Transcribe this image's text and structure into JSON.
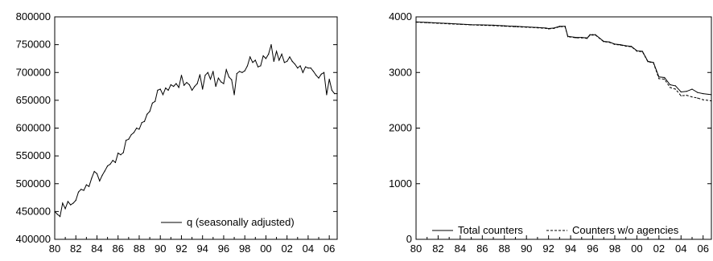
{
  "chart_data": [
    {
      "type": "line",
      "title": "",
      "xlabel": "",
      "ylabel": "",
      "xlim": [
        1980,
        2006.75
      ],
      "ylim": [
        400000,
        800000
      ],
      "x_ticks": [
        "80",
        "82",
        "84",
        "86",
        "88",
        "90",
        "92",
        "94",
        "96",
        "98",
        "00",
        "02",
        "04",
        "06"
      ],
      "y_ticks": [
        "400000",
        "450000",
        "500000",
        "550000",
        "600000",
        "650000",
        "700000",
        "750000",
        "800000"
      ],
      "legend": "bottom-right",
      "grid": false,
      "series": [
        {
          "name": "q (seasonally adjusted)",
          "style": "solid",
          "x": [
            1980.0,
            1980.25,
            1980.5,
            1980.75,
            1981.0,
            1981.25,
            1981.5,
            1981.75,
            1982.0,
            1982.25,
            1982.5,
            1982.75,
            1983.0,
            1983.25,
            1983.5,
            1983.75,
            1984.0,
            1984.25,
            1984.5,
            1984.75,
            1985.0,
            1985.25,
            1985.5,
            1985.75,
            1986.0,
            1986.25,
            1986.5,
            1986.75,
            1987.0,
            1987.25,
            1987.5,
            1987.75,
            1988.0,
            1988.25,
            1988.5,
            1988.75,
            1989.0,
            1989.25,
            1989.5,
            1989.75,
            1990.0,
            1990.25,
            1990.5,
            1990.75,
            1991.0,
            1991.25,
            1991.5,
            1991.75,
            1992.0,
            1992.25,
            1992.5,
            1992.75,
            1993.0,
            1993.25,
            1993.5,
            1993.75,
            1994.0,
            1994.25,
            1994.5,
            1994.75,
            1995.0,
            1995.25,
            1995.5,
            1995.75,
            1996.0,
            1996.25,
            1996.5,
            1996.75,
            1997.0,
            1997.25,
            1997.5,
            1997.75,
            1998.0,
            1998.25,
            1998.5,
            1998.75,
            1999.0,
            1999.25,
            1999.5,
            1999.75,
            2000.0,
            2000.25,
            2000.5,
            2000.75,
            2001.0,
            2001.25,
            2001.5,
            2001.75,
            2002.0,
            2002.25,
            2002.5,
            2002.75,
            2003.0,
            2003.25,
            2003.5,
            2003.75,
            2004.0,
            2004.25,
            2004.5,
            2004.75,
            2005.0,
            2005.25,
            2005.5,
            2005.75,
            2006.0,
            2006.25,
            2006.5,
            2006.75
          ],
          "values": [
            450000,
            445000,
            441000,
            465000,
            455000,
            468000,
            462000,
            465000,
            470000,
            485000,
            490000,
            488000,
            498000,
            495000,
            510000,
            522000,
            518000,
            505000,
            515000,
            523000,
            532000,
            535000,
            542000,
            538000,
            555000,
            552000,
            556000,
            578000,
            580000,
            588000,
            592000,
            600000,
            598000,
            610000,
            612000,
            625000,
            630000,
            645000,
            648000,
            668000,
            670000,
            660000,
            672000,
            668000,
            678000,
            675000,
            680000,
            673000,
            695000,
            677000,
            682000,
            678000,
            668000,
            675000,
            680000,
            696000,
            670000,
            695000,
            700000,
            688000,
            702000,
            675000,
            690000,
            683000,
            680000,
            705000,
            692000,
            687000,
            660000,
            698000,
            702000,
            700000,
            703000,
            712000,
            728000,
            718000,
            722000,
            710000,
            712000,
            730000,
            725000,
            733000,
            750000,
            720000,
            738000,
            722000,
            733000,
            718000,
            720000,
            728000,
            720000,
            715000,
            708000,
            712000,
            700000,
            710000,
            708000,
            708000,
            702000,
            695000,
            690000,
            697000,
            700000,
            660000,
            688000,
            668000,
            662000,
            662000
          ]
        }
      ]
    },
    {
      "type": "line",
      "title": "",
      "xlabel": "",
      "ylabel": "",
      "xlim": [
        1980,
        2006.75
      ],
      "ylim": [
        0,
        4000
      ],
      "x_ticks": [
        "80",
        "82",
        "84",
        "86",
        "88",
        "90",
        "92",
        "94",
        "96",
        "98",
        "00",
        "02",
        "04",
        "06"
      ],
      "y_ticks": [
        "0",
        "1000",
        "2000",
        "3000",
        "4000"
      ],
      "legend": "bottom",
      "grid": false,
      "series": [
        {
          "name": "Total counters",
          "style": "solid",
          "x": [
            1980.0,
            1981.0,
            1982.0,
            1983.0,
            1984.0,
            1985.0,
            1986.0,
            1987.0,
            1988.0,
            1989.0,
            1990.0,
            1991.0,
            1991.75,
            1992.0,
            1992.5,
            1993.0,
            1993.5,
            1993.75,
            1994.5,
            1995.0,
            1995.5,
            1995.75,
            1996.0,
            1996.25,
            1997.0,
            1997.5,
            1998.0,
            1998.5,
            1999.0,
            1999.5,
            2000.0,
            2000.5,
            2001.0,
            2001.5,
            2002.0,
            2002.5,
            2003.0,
            2003.5,
            2004.0,
            2004.5,
            2005.0,
            2005.5,
            2006.0,
            2006.75
          ],
          "values": [
            3910,
            3900,
            3890,
            3880,
            3870,
            3860,
            3855,
            3850,
            3840,
            3830,
            3820,
            3810,
            3800,
            3790,
            3800,
            3830,
            3830,
            3650,
            3630,
            3630,
            3620,
            3680,
            3680,
            3680,
            3560,
            3550,
            3510,
            3500,
            3480,
            3470,
            3390,
            3380,
            3200,
            3180,
            2920,
            2910,
            2780,
            2760,
            2650,
            2660,
            2700,
            2640,
            2620,
            2600
          ]
        },
        {
          "name": "Counters w/o agencies",
          "style": "dashed",
          "x": [
            1980.0,
            1981.0,
            1982.0,
            1983.0,
            1984.0,
            1985.0,
            1986.0,
            1987.0,
            1988.0,
            1989.0,
            1990.0,
            1991.0,
            1991.75,
            1992.0,
            1992.5,
            1993.0,
            1993.5,
            1993.75,
            1994.5,
            1995.0,
            1995.5,
            1995.75,
            1996.0,
            1996.25,
            1997.0,
            1997.5,
            1998.0,
            1998.5,
            1999.0,
            1999.5,
            2000.0,
            2000.5,
            2001.0,
            2001.5,
            2002.0,
            2002.5,
            2003.0,
            2003.5,
            2004.0,
            2004.5,
            2005.0,
            2005.5,
            2006.0,
            2006.75
          ],
          "values": [
            3905,
            3895,
            3885,
            3875,
            3865,
            3855,
            3848,
            3843,
            3833,
            3823,
            3813,
            3803,
            3793,
            3783,
            3793,
            3823,
            3823,
            3643,
            3623,
            3623,
            3613,
            3673,
            3673,
            3673,
            3553,
            3543,
            3503,
            3493,
            3473,
            3463,
            3383,
            3373,
            3193,
            3173,
            2890,
            2880,
            2730,
            2700,
            2580,
            2590,
            2560,
            2540,
            2510,
            2490
          ]
        }
      ]
    }
  ]
}
